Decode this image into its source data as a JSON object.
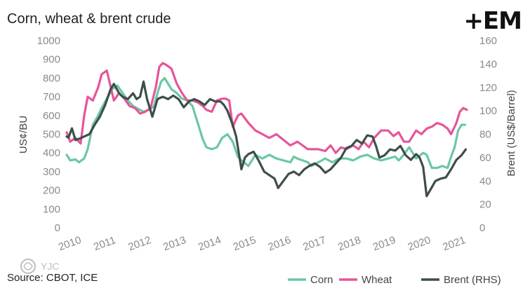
{
  "title": "Corn, wheat & brent crude",
  "logo": "+EM",
  "source": "Source: CBOT, ICE",
  "watermark_text": "YJC",
  "chart_data": {
    "type": "line",
    "title": "Corn, wheat & brent crude",
    "ylabel": "US¢/BU",
    "y2label": "Brent (US$/Barrel)",
    "ylim": [
      0,
      1000
    ],
    "y2lim": [
      0,
      160
    ],
    "xlim": [
      2010,
      2021.45
    ],
    "yticks": [
      "0",
      "100",
      "200",
      "300",
      "400",
      "500",
      "600",
      "700",
      "800",
      "900",
      "1000"
    ],
    "y2ticks": [
      "0",
      "20",
      "40",
      "60",
      "80",
      "100",
      "120",
      "140",
      "160"
    ],
    "xticks": [
      "2010",
      "2011",
      "2012",
      "2013",
      "2014",
      "2015",
      "2016",
      "2017",
      "2018",
      "2019",
      "2020",
      "2021"
    ],
    "grid": false,
    "legend_position": "bottom-right",
    "series": [
      {
        "name": "Corn",
        "axis": "left",
        "color": "#6cc7a4",
        "x": [
          2010.0,
          2010.1,
          2010.25,
          2010.35,
          2010.5,
          2010.6,
          2010.75,
          2010.9,
          2011.0,
          2011.15,
          2011.3,
          2011.45,
          2011.6,
          2011.75,
          2011.9,
          2012.0,
          2012.2,
          2012.35,
          2012.5,
          2012.6,
          2012.7,
          2012.8,
          2012.9,
          2013.0,
          2013.15,
          2013.3,
          2013.45,
          2013.6,
          2013.75,
          2013.9,
          2014.0,
          2014.15,
          2014.3,
          2014.45,
          2014.6,
          2014.75,
          2014.9,
          2015.0,
          2015.2,
          2015.4,
          2015.5,
          2015.6,
          2015.8,
          2016.0,
          2016.2,
          2016.4,
          2016.5,
          2016.6,
          2016.75,
          2016.9,
          2017.0,
          2017.2,
          2017.4,
          2017.6,
          2017.8,
          2018.0,
          2018.2,
          2018.4,
          2018.6,
          2018.8,
          2019.0,
          2019.2,
          2019.4,
          2019.5,
          2019.6,
          2019.8,
          2020.0,
          2020.2,
          2020.3,
          2020.45,
          2020.6,
          2020.75,
          2020.9,
          2021.0,
          2021.1,
          2021.2,
          2021.3,
          2021.4
        ],
        "values": [
          390,
          360,
          365,
          350,
          370,
          420,
          550,
          600,
          640,
          690,
          740,
          760,
          720,
          680,
          650,
          640,
          620,
          630,
          650,
          720,
          780,
          800,
          770,
          740,
          720,
          690,
          680,
          650,
          560,
          470,
          430,
          420,
          430,
          480,
          500,
          460,
          380,
          360,
          330,
          390,
          380,
          370,
          390,
          370,
          360,
          350,
          380,
          370,
          360,
          350,
          330,
          350,
          370,
          350,
          370,
          370,
          360,
          380,
          390,
          370,
          360,
          370,
          380,
          360,
          380,
          430,
          370,
          400,
          390,
          320,
          320,
          330,
          320,
          380,
          430,
          520,
          550,
          550
        ]
      },
      {
        "name": "Wheat",
        "axis": "left",
        "color": "#e6559a",
        "x": [
          2010.0,
          2010.1,
          2010.25,
          2010.4,
          2010.5,
          2010.6,
          2010.75,
          2010.9,
          2011.0,
          2011.15,
          2011.25,
          2011.35,
          2011.5,
          2011.65,
          2011.8,
          2011.95,
          2012.1,
          2012.25,
          2012.4,
          2012.55,
          2012.65,
          2012.75,
          2012.85,
          2013.0,
          2013.15,
          2013.3,
          2013.45,
          2013.6,
          2013.75,
          2013.9,
          2014.0,
          2014.15,
          2014.3,
          2014.45,
          2014.55,
          2014.65,
          2014.75,
          2014.9,
          2015.0,
          2015.2,
          2015.4,
          2015.6,
          2015.8,
          2016.0,
          2016.2,
          2016.4,
          2016.6,
          2016.75,
          2016.9,
          2017.0,
          2017.2,
          2017.4,
          2017.55,
          2017.7,
          2017.85,
          2018.0,
          2018.2,
          2018.35,
          2018.5,
          2018.65,
          2018.8,
          2019.0,
          2019.2,
          2019.35,
          2019.5,
          2019.65,
          2019.8,
          2020.0,
          2020.15,
          2020.3,
          2020.45,
          2020.6,
          2020.75,
          2020.9,
          2021.0,
          2021.15,
          2021.25,
          2021.35,
          2021.45
        ],
        "values": [
          510,
          460,
          480,
          450,
          600,
          700,
          680,
          750,
          820,
          840,
          760,
          680,
          720,
          690,
          650,
          640,
          610,
          620,
          640,
          750,
          860,
          880,
          870,
          850,
          770,
          720,
          680,
          680,
          670,
          650,
          630,
          620,
          680,
          690,
          690,
          680,
          540,
          600,
          610,
          560,
          520,
          500,
          480,
          500,
          470,
          440,
          460,
          440,
          420,
          420,
          420,
          410,
          440,
          400,
          430,
          420,
          440,
          420,
          460,
          430,
          480,
          520,
          520,
          490,
          510,
          460,
          460,
          520,
          500,
          530,
          540,
          560,
          550,
          530,
          500,
          560,
          620,
          640,
          630
        ]
      },
      {
        "name": "Brent (RHS)",
        "axis": "right",
        "color": "#3e4e4a",
        "x": [
          2010.0,
          2010.05,
          2010.15,
          2010.25,
          2010.35,
          2010.5,
          2010.65,
          2010.8,
          2010.95,
          2011.1,
          2011.25,
          2011.35,
          2011.5,
          2011.6,
          2011.75,
          2011.9,
          2012.0,
          2012.1,
          2012.2,
          2012.3,
          2012.45,
          2012.6,
          2012.75,
          2012.9,
          2013.05,
          2013.2,
          2013.35,
          2013.5,
          2013.65,
          2013.8,
          2013.95,
          2014.1,
          2014.25,
          2014.4,
          2014.5,
          2014.6,
          2014.75,
          2014.85,
          2015.0,
          2015.1,
          2015.2,
          2015.35,
          2015.5,
          2015.65,
          2015.8,
          2015.95,
          2016.05,
          2016.2,
          2016.35,
          2016.5,
          2016.65,
          2016.8,
          2016.95,
          2017.1,
          2017.25,
          2017.4,
          2017.55,
          2017.7,
          2017.85,
          2018.0,
          2018.15,
          2018.3,
          2018.45,
          2018.6,
          2018.75,
          2018.85,
          2018.95,
          2019.1,
          2019.25,
          2019.4,
          2019.55,
          2019.7,
          2019.85,
          2020.0,
          2020.1,
          2020.2,
          2020.3,
          2020.4,
          2020.55,
          2020.7,
          2020.85,
          2021.0,
          2021.15,
          2021.3,
          2021.42
        ],
        "values": [
          78,
          77,
          85,
          75,
          76,
          78,
          80,
          88,
          95,
          105,
          118,
          123,
          115,
          112,
          110,
          115,
          110,
          112,
          125,
          110,
          95,
          110,
          112,
          110,
          113,
          110,
          103,
          108,
          110,
          108,
          105,
          110,
          108,
          108,
          105,
          100,
          88,
          78,
          50,
          60,
          63,
          65,
          57,
          48,
          45,
          42,
          34,
          40,
          46,
          48,
          45,
          50,
          53,
          55,
          52,
          47,
          50,
          55,
          60,
          68,
          70,
          75,
          72,
          79,
          78,
          70,
          60,
          62,
          67,
          66,
          70,
          62,
          58,
          63,
          60,
          52,
          27,
          32,
          40,
          42,
          43,
          50,
          58,
          62,
          67
        ]
      }
    ]
  }
}
